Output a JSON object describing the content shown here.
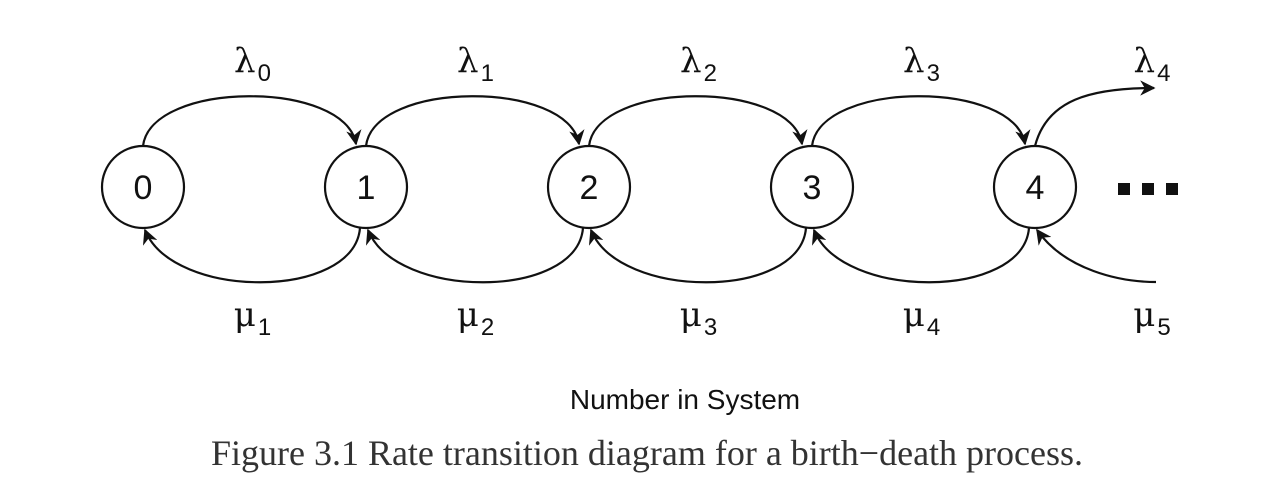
{
  "diagram": {
    "nodes": [
      "0",
      "1",
      "2",
      "3",
      "4"
    ],
    "birth_rates": [
      {
        "symbol": "λ",
        "sub": "0"
      },
      {
        "symbol": "λ",
        "sub": "1"
      },
      {
        "symbol": "λ",
        "sub": "2"
      },
      {
        "symbol": "λ",
        "sub": "3"
      },
      {
        "symbol": "λ",
        "sub": "4"
      }
    ],
    "death_rates": [
      {
        "symbol": "μ",
        "sub": "1"
      },
      {
        "symbol": "μ",
        "sub": "2"
      },
      {
        "symbol": "μ",
        "sub": "3"
      },
      {
        "symbol": "μ",
        "sub": "4"
      },
      {
        "symbol": "μ",
        "sub": "5"
      }
    ],
    "axis_caption": "Number in System",
    "figure_caption": "Figure 3.1 Rate transition diagram for a birth−death process."
  }
}
